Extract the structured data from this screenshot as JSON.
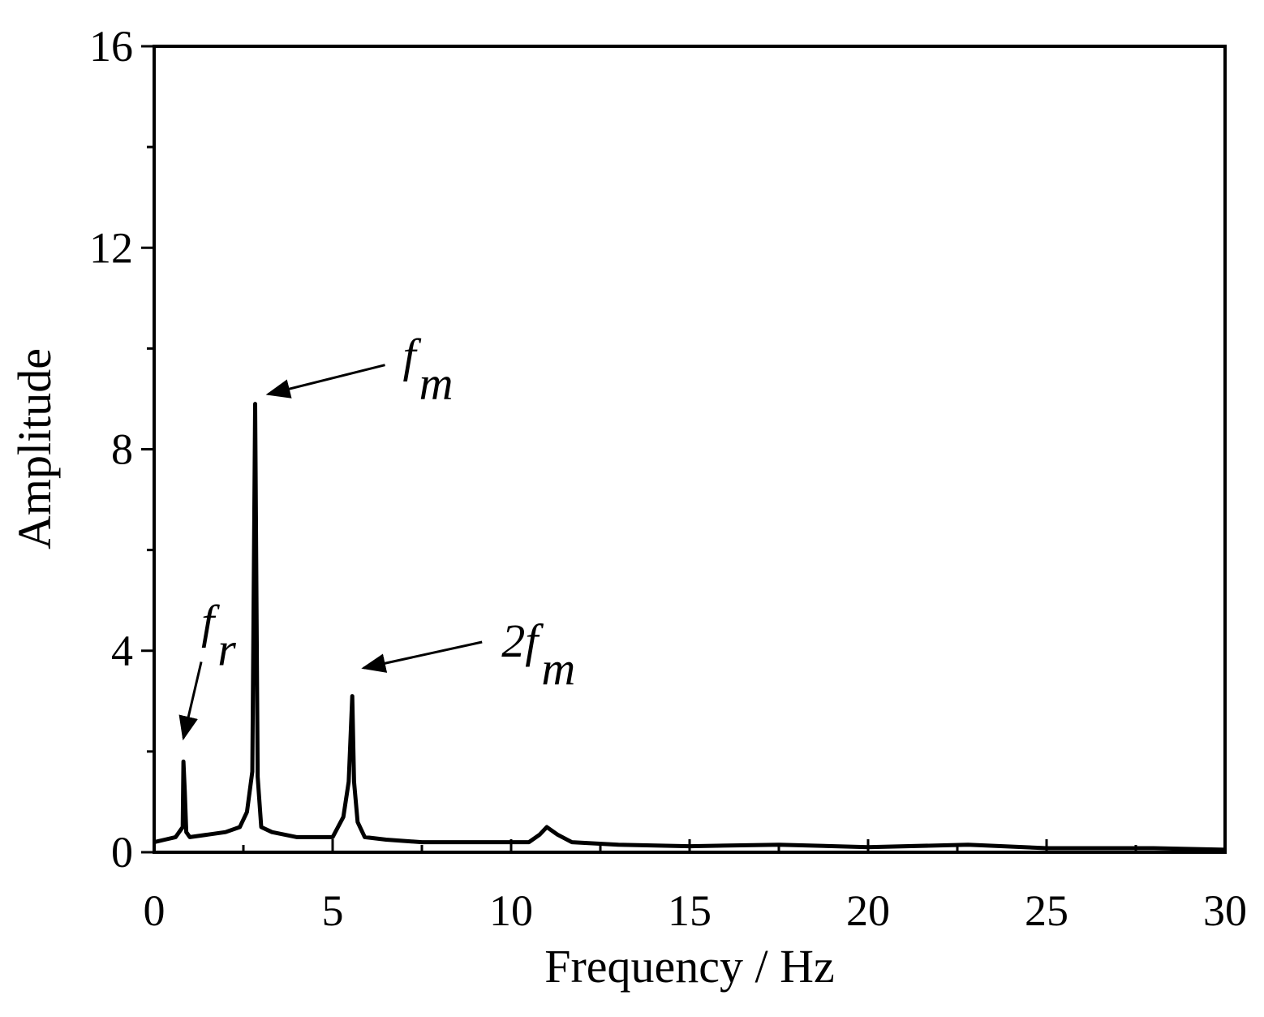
{
  "chart_data": {
    "type": "line",
    "xlabel": "Frequency / Hz",
    "ylabel": "Amplitude",
    "xlim": [
      0,
      30
    ],
    "ylim": [
      0,
      16
    ],
    "x_ticks": [
      0,
      5,
      10,
      15,
      20,
      25,
      30
    ],
    "y_ticks": [
      0,
      4,
      8,
      12,
      16
    ],
    "x_minor_step": 2.5,
    "y_minor_step": 2,
    "grid": false,
    "legend": "none",
    "line_color": "#000000",
    "series": [
      {
        "x": [
          0,
          0.3,
          0.6,
          0.8,
          0.82,
          0.86,
          0.9,
          1.0,
          1.5,
          2.0,
          2.4,
          2.6,
          2.75,
          2.83,
          2.9,
          3.0,
          3.3,
          4.0,
          5.0,
          5.3,
          5.45,
          5.55,
          5.6,
          5.7,
          5.9,
          6.5,
          7.5,
          9.0,
          10.5,
          10.8,
          11.0,
          11.3,
          11.7,
          13.0,
          15.0,
          17.5,
          20.0,
          22.8,
          25.0,
          28.0,
          30.0
        ],
        "y": [
          0.2,
          0.25,
          0.3,
          0.5,
          1.8,
          1.2,
          0.4,
          0.3,
          0.35,
          0.4,
          0.5,
          0.8,
          1.6,
          8.9,
          1.5,
          0.5,
          0.4,
          0.3,
          0.3,
          0.7,
          1.4,
          3.1,
          1.4,
          0.6,
          0.3,
          0.25,
          0.2,
          0.2,
          0.2,
          0.35,
          0.5,
          0.35,
          0.2,
          0.15,
          0.12,
          0.15,
          0.1,
          0.15,
          0.08,
          0.08,
          0.05
        ]
      }
    ],
    "annotations": [
      {
        "base": "f",
        "sub": "m",
        "x": 2.83,
        "y": 8.9
      },
      {
        "base": "2f",
        "sub": "m",
        "x": 5.55,
        "y": 3.4
      },
      {
        "base": "f",
        "sub": "r",
        "x": 0.82,
        "y": 2.2
      }
    ]
  }
}
